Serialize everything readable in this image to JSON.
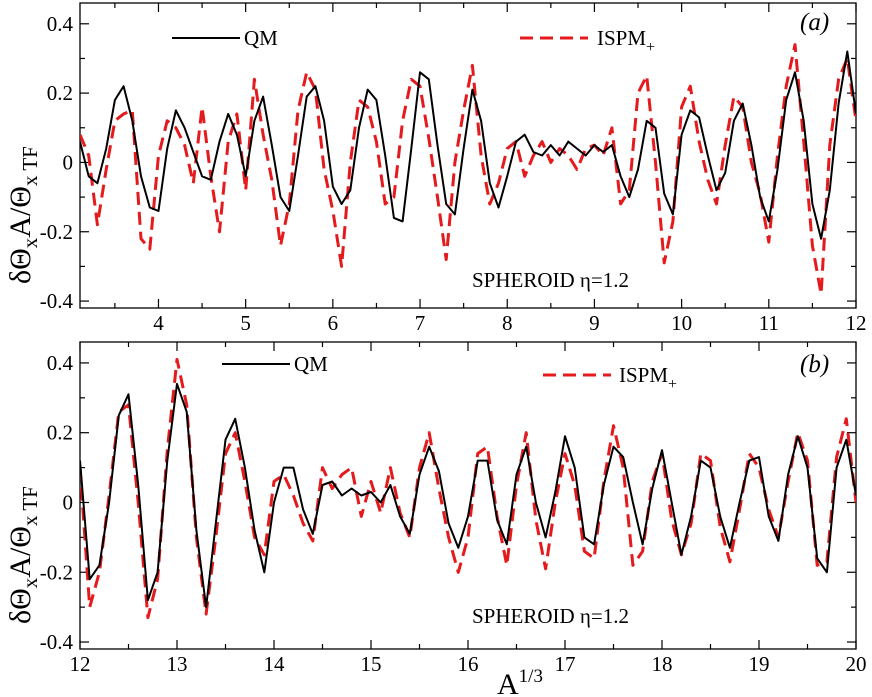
{
  "colors": {
    "qm": "#000000",
    "ispm": "#e41a1c"
  },
  "chart_data": [
    {
      "type": "line",
      "panel_label": "(a)",
      "xlabel": "",
      "ylabel_main": "δΘ",
      "ylabel_sub1": "x",
      "ylabel_mid": "A/Θ",
      "ylabel_sub2": "x TF",
      "xlim": [
        3.1,
        12
      ],
      "ylim": [
        -0.42,
        0.46
      ],
      "xticks": [
        4,
        5,
        6,
        7,
        8,
        9,
        10,
        11,
        12
      ],
      "xtick_labels": [
        "4",
        "5",
        "6",
        "7",
        "8",
        "9",
        "10",
        "11",
        "12"
      ],
      "yticks": [
        -0.4,
        -0.2,
        0,
        0.2,
        0.4
      ],
      "ytick_labels": [
        "-0.4",
        "-0.2",
        "0",
        "0.2",
        "0.4"
      ],
      "annotation": "SPHEROID η=1.2",
      "legend": [
        {
          "label": "QM",
          "style": "solid"
        },
        {
          "label_main": "ISPM",
          "label_sub": "+",
          "style": "dashed"
        }
      ],
      "series": [
        {
          "name": "QM",
          "x": [
            3.1,
            3.2,
            3.3,
            3.4,
            3.5,
            3.6,
            3.7,
            3.8,
            3.9,
            4.0,
            4.1,
            4.2,
            4.3,
            4.4,
            4.5,
            4.6,
            4.7,
            4.8,
            4.9,
            5.0,
            5.1,
            5.2,
            5.3,
            5.4,
            5.5,
            5.6,
            5.7,
            5.8,
            5.9,
            6.0,
            6.1,
            6.2,
            6.3,
            6.4,
            6.5,
            6.6,
            6.7,
            6.8,
            6.9,
            7.0,
            7.1,
            7.2,
            7.3,
            7.4,
            7.5,
            7.6,
            7.7,
            7.8,
            7.9,
            8.0,
            8.1,
            8.2,
            8.3,
            8.4,
            8.5,
            8.6,
            8.7,
            8.8,
            8.9,
            9.0,
            9.1,
            9.2,
            9.3,
            9.4,
            9.5,
            9.6,
            9.7,
            9.8,
            9.9,
            10.0,
            10.1,
            10.2,
            10.3,
            10.4,
            10.5,
            10.6,
            10.7,
            10.8,
            10.9,
            11.0,
            11.1,
            11.2,
            11.3,
            11.4,
            11.5,
            11.6,
            11.7,
            11.8,
            11.9,
            12.0
          ],
          "values": [
            0.06,
            -0.04,
            -0.06,
            0.04,
            0.18,
            0.22,
            0.12,
            -0.04,
            -0.13,
            -0.14,
            0.04,
            0.15,
            0.1,
            0.03,
            -0.04,
            -0.05,
            0.06,
            0.14,
            0.08,
            -0.04,
            0.12,
            0.19,
            0.05,
            -0.1,
            -0.14,
            0.02,
            0.19,
            0.22,
            0.12,
            -0.07,
            -0.12,
            -0.08,
            0.1,
            0.21,
            0.18,
            0.02,
            -0.16,
            -0.17,
            0.04,
            0.26,
            0.24,
            0.05,
            -0.12,
            -0.15,
            0.04,
            0.21,
            0.12,
            -0.06,
            -0.13,
            -0.04,
            0.06,
            0.08,
            0.03,
            0.02,
            0.05,
            0.02,
            0.06,
            0.04,
            0.02,
            0.05,
            0.03,
            0.05,
            -0.04,
            -0.1,
            -0.02,
            0.12,
            0.1,
            -0.09,
            -0.15,
            0.08,
            0.15,
            0.13,
            0.02,
            -0.08,
            -0.03,
            0.12,
            0.17,
            0.05,
            -0.1,
            -0.17,
            -0.02,
            0.18,
            0.26,
            0.12,
            -0.12,
            -0.22,
            -0.08,
            0.17,
            0.32,
            0.14
          ]
        },
        {
          "name": "ISPM+",
          "x": [
            3.1,
            3.2,
            3.3,
            3.4,
            3.5,
            3.6,
            3.7,
            3.8,
            3.9,
            4.0,
            4.1,
            4.2,
            4.3,
            4.4,
            4.5,
            4.6,
            4.7,
            4.8,
            4.9,
            5.0,
            5.1,
            5.2,
            5.3,
            5.4,
            5.5,
            5.6,
            5.7,
            5.8,
            5.9,
            6.0,
            6.1,
            6.2,
            6.3,
            6.4,
            6.5,
            6.6,
            6.7,
            6.8,
            6.9,
            7.0,
            7.1,
            7.2,
            7.3,
            7.4,
            7.5,
            7.6,
            7.7,
            7.8,
            7.9,
            8.0,
            8.1,
            8.2,
            8.3,
            8.4,
            8.5,
            8.6,
            8.7,
            8.8,
            8.9,
            9.0,
            9.1,
            9.2,
            9.3,
            9.4,
            9.5,
            9.6,
            9.7,
            9.8,
            9.9,
            10.0,
            10.1,
            10.2,
            10.3,
            10.4,
            10.5,
            10.6,
            10.7,
            10.8,
            10.9,
            11.0,
            11.1,
            11.2,
            11.3,
            11.4,
            11.5,
            11.6,
            11.7,
            11.8,
            11.9,
            12.0
          ],
          "values": [
            0.08,
            0.02,
            -0.18,
            -0.02,
            0.12,
            0.14,
            0.15,
            -0.22,
            -0.25,
            0.02,
            0.12,
            0.1,
            0.05,
            -0.06,
            0.16,
            -0.04,
            -0.2,
            0.06,
            0.14,
            -0.08,
            0.24,
            0.08,
            -0.05,
            -0.24,
            -0.12,
            0.15,
            0.26,
            0.21,
            -0.02,
            -0.14,
            -0.3,
            0.0,
            0.18,
            0.16,
            0.06,
            -0.12,
            -0.1,
            0.12,
            0.24,
            0.22,
            0.07,
            -0.1,
            -0.28,
            0.0,
            0.15,
            0.28,
            0.02,
            -0.12,
            -0.06,
            0.04,
            0.06,
            -0.04,
            0.02,
            0.06,
            0.0,
            0.04,
            0.02,
            -0.02,
            0.04,
            0.05,
            0.02,
            0.1,
            -0.12,
            -0.08,
            0.2,
            0.25,
            0.0,
            -0.29,
            -0.17,
            0.16,
            0.22,
            0.06,
            -0.05,
            -0.12,
            0.05,
            0.19,
            0.16,
            0.0,
            -0.09,
            -0.23,
            0.02,
            0.22,
            0.34,
            0.06,
            -0.24,
            -0.38,
            0.05,
            0.24,
            0.3,
            0.12
          ]
        }
      ]
    },
    {
      "type": "line",
      "panel_label": "(b)",
      "xlabel_main": "A",
      "xlabel_sup": "1/3",
      "ylabel_main": "δΘ",
      "ylabel_sub1": "x",
      "ylabel_mid": "A/Θ",
      "ylabel_sub2": "x TF",
      "xlim": [
        12,
        20
      ],
      "ylim": [
        -0.42,
        0.46
      ],
      "xticks": [
        12,
        13,
        14,
        15,
        16,
        17,
        18,
        19,
        20
      ],
      "xtick_labels": [
        "12",
        "13",
        "14",
        "15",
        "16",
        "17",
        "18",
        "19",
        "20"
      ],
      "yticks": [
        -0.4,
        -0.2,
        0,
        0.2,
        0.4
      ],
      "ytick_labels": [
        "-0.4",
        "-0.2",
        "0",
        "0.2",
        "0.4"
      ],
      "annotation": "SPHEROID η=1.2",
      "legend": [
        {
          "label": "QM",
          "style": "solid"
        },
        {
          "label_main": "ISPM",
          "label_sub": "+",
          "style": "dashed"
        }
      ],
      "series": [
        {
          "name": "QM",
          "x": [
            12.0,
            12.1,
            12.2,
            12.3,
            12.4,
            12.5,
            12.6,
            12.7,
            12.8,
            12.9,
            13.0,
            13.1,
            13.2,
            13.3,
            13.4,
            13.5,
            13.6,
            13.7,
            13.8,
            13.9,
            14.0,
            14.1,
            14.2,
            14.3,
            14.4,
            14.5,
            14.6,
            14.7,
            14.8,
            14.9,
            15.0,
            15.1,
            15.2,
            15.3,
            15.4,
            15.5,
            15.6,
            15.7,
            15.8,
            15.9,
            16.0,
            16.1,
            16.2,
            16.3,
            16.4,
            16.5,
            16.6,
            16.7,
            16.8,
            16.9,
            17.0,
            17.1,
            17.2,
            17.3,
            17.4,
            17.5,
            17.6,
            17.7,
            17.8,
            17.9,
            18.0,
            18.1,
            18.2,
            18.3,
            18.4,
            18.5,
            18.6,
            18.7,
            18.8,
            18.9,
            19.0,
            19.1,
            19.2,
            19.3,
            19.4,
            19.5,
            19.6,
            19.7,
            19.8,
            19.9,
            20.0
          ],
          "values": [
            0.12,
            -0.22,
            -0.18,
            0.0,
            0.25,
            0.31,
            0.05,
            -0.28,
            -0.2,
            0.12,
            0.34,
            0.26,
            -0.08,
            -0.3,
            -0.06,
            0.18,
            0.24,
            0.1,
            -0.08,
            -0.2,
            0.0,
            0.1,
            0.1,
            -0.02,
            -0.09,
            0.05,
            0.06,
            0.02,
            0.04,
            0.02,
            0.03,
            0.0,
            0.05,
            -0.04,
            -0.09,
            0.08,
            0.16,
            0.09,
            -0.06,
            -0.13,
            -0.04,
            0.12,
            0.12,
            -0.05,
            -0.12,
            0.08,
            0.16,
            0.0,
            -0.1,
            0.03,
            0.19,
            0.1,
            -0.1,
            -0.12,
            0.05,
            0.16,
            0.13,
            0.0,
            -0.12,
            0.04,
            0.15,
            0.0,
            -0.15,
            -0.04,
            0.12,
            0.1,
            -0.04,
            -0.13,
            0.0,
            0.12,
            0.13,
            -0.04,
            -0.11,
            0.08,
            0.19,
            0.1,
            -0.16,
            -0.2,
            0.1,
            0.18,
            0.02
          ]
        },
        {
          "name": "ISPM+",
          "x": [
            12.0,
            12.1,
            12.2,
            12.3,
            12.4,
            12.5,
            12.6,
            12.7,
            12.8,
            12.9,
            13.0,
            13.1,
            13.2,
            13.3,
            13.4,
            13.5,
            13.6,
            13.7,
            13.8,
            13.9,
            14.0,
            14.1,
            14.2,
            14.3,
            14.4,
            14.5,
            14.6,
            14.7,
            14.8,
            14.9,
            15.0,
            15.1,
            15.2,
            15.3,
            15.4,
            15.5,
            15.6,
            15.7,
            15.8,
            15.9,
            16.0,
            16.1,
            16.2,
            16.3,
            16.4,
            16.5,
            16.6,
            16.7,
            16.8,
            16.9,
            17.0,
            17.1,
            17.2,
            17.3,
            17.4,
            17.5,
            17.6,
            17.7,
            17.8,
            17.9,
            18.0,
            18.1,
            18.2,
            18.3,
            18.4,
            18.5,
            18.6,
            18.7,
            18.8,
            18.9,
            19.0,
            19.1,
            19.2,
            19.3,
            19.4,
            19.5,
            19.6,
            19.7,
            19.8,
            19.9,
            20.0
          ],
          "values": [
            0.1,
            -0.3,
            -0.2,
            0.02,
            0.26,
            0.28,
            0.0,
            -0.33,
            -0.22,
            0.15,
            0.41,
            0.28,
            -0.1,
            -0.32,
            -0.1,
            0.14,
            0.2,
            0.06,
            -0.1,
            -0.15,
            0.06,
            0.08,
            0.02,
            -0.06,
            -0.11,
            0.1,
            0.04,
            0.08,
            0.1,
            -0.04,
            0.06,
            -0.03,
            0.1,
            -0.03,
            -0.1,
            0.1,
            0.2,
            0.04,
            -0.1,
            -0.2,
            -0.1,
            0.14,
            0.16,
            -0.04,
            -0.18,
            0.05,
            0.2,
            -0.05,
            -0.19,
            0.0,
            0.14,
            0.05,
            -0.14,
            -0.16,
            0.06,
            0.22,
            0.1,
            -0.18,
            -0.14,
            0.06,
            0.14,
            -0.05,
            -0.15,
            -0.06,
            0.14,
            0.12,
            -0.07,
            -0.17,
            -0.02,
            0.14,
            0.1,
            -0.02,
            -0.1,
            0.06,
            0.2,
            0.12,
            -0.18,
            -0.17,
            0.13,
            0.24,
            0.0
          ]
        }
      ]
    }
  ]
}
